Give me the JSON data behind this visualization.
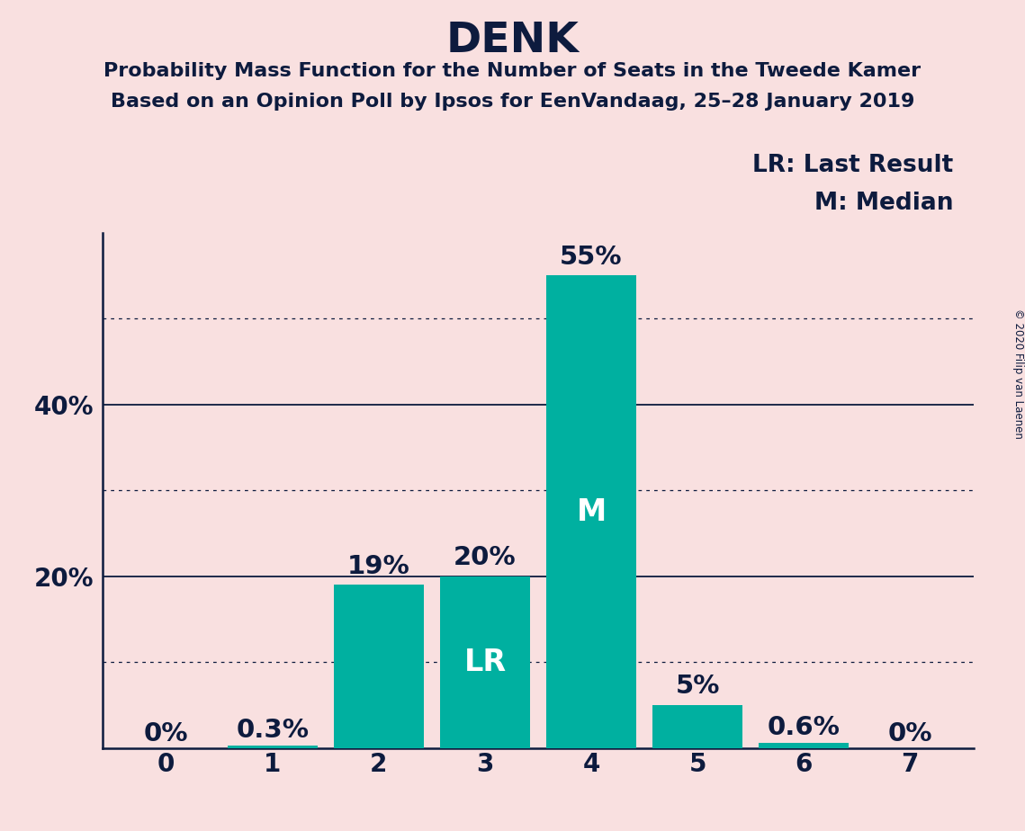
{
  "title": "DENK",
  "subtitle1": "Probability Mass Function for the Number of Seats in the Tweede Kamer",
  "subtitle2": "Based on an Opinion Poll by Ipsos for EenVandaag, 25–28 January 2019",
  "copyright": "© 2020 Filip van Laenen",
  "legend_lr": "LR: Last Result",
  "legend_m": "M: Median",
  "categories": [
    0,
    1,
    2,
    3,
    4,
    5,
    6,
    7
  ],
  "values": [
    0.0,
    0.3,
    19.0,
    20.0,
    55.0,
    5.0,
    0.6,
    0.0
  ],
  "bar_color": "#00b0a0",
  "background_color": "#f9e0e0",
  "label_above": [
    "0%",
    "0.3%",
    "19%",
    "20%",
    "55%",
    "5%",
    "0.6%",
    "0%"
  ],
  "bar_labels": [
    "",
    "",
    "",
    "LR",
    "M",
    "",
    "",
    ""
  ],
  "ylim_max": 60,
  "dotted_lines": [
    10,
    30,
    50
  ],
  "solid_lines": [
    20,
    40
  ],
  "title_fontsize": 34,
  "subtitle_fontsize": 16,
  "bar_label_fontsize": 21,
  "bar_inner_fontsize": 24,
  "axis_tick_fontsize": 20,
  "legend_fontsize": 19,
  "text_color": "#0d1b3e"
}
